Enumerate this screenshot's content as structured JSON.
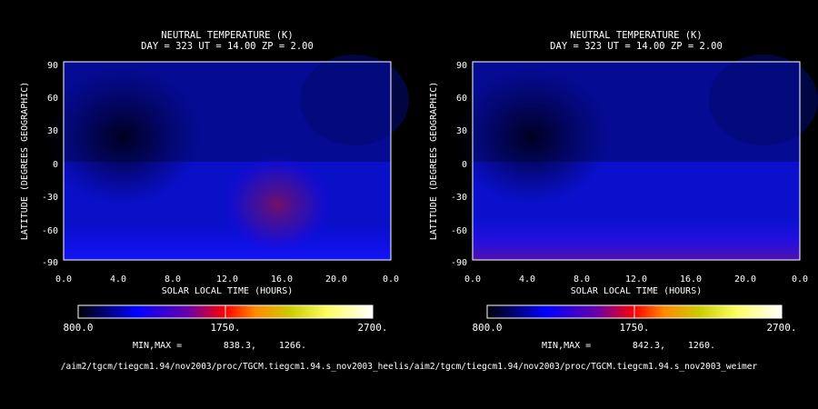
{
  "chart_data": [
    {
      "type": "heatmap",
      "title": "NEUTRAL TEMPERATURE (K)",
      "subtitle": "DAY = 323   UT = 14.00   ZP =    2.00",
      "xlabel": "SOLAR LOCAL TIME (HOURS)",
      "ylabel": "LATITUDE (DEGREES GEOGRAPHIC)",
      "x_ticks": [
        "0.0",
        "4.0",
        "8.0",
        "12.0",
        "16.0",
        "20.0",
        "0.0"
      ],
      "y_ticks": [
        "90",
        "60",
        "30",
        "0",
        "-30",
        "-60",
        "-90"
      ],
      "colorbar": {
        "min_label": "800.0",
        "mid_label": "1750.",
        "max_label": "2700.",
        "min": 800,
        "max": 2700
      },
      "minmax_label": "MIN,MAX =",
      "min_value": "838.3,",
      "max_value": "1266.",
      "path_text": "/aim2/tgcm/tiegcm1.94/nov2003/proc/TGCM.tiegcm1.94.s_nov2003_heelis",
      "features": [
        {
          "x_hours": 15.5,
          "lat": -40,
          "value": 1266
        },
        {
          "x_hours": 4.5,
          "lat": 20,
          "value": 838
        }
      ]
    },
    {
      "type": "heatmap",
      "title": "NEUTRAL TEMPERATURE (K)",
      "subtitle": "DAY = 323   UT = 14.00   ZP =    2.00",
      "xlabel": "SOLAR LOCAL TIME (HOURS)",
      "ylabel": "LATITUDE (DEGREES GEOGRAPHIC)",
      "x_ticks": [
        "0.0",
        "4.0",
        "8.0",
        "12.0",
        "16.0",
        "20.0",
        "0.0"
      ],
      "y_ticks": [
        "90",
        "60",
        "30",
        "0",
        "-30",
        "-60",
        "-90"
      ],
      "colorbar": {
        "min_label": "800.0",
        "mid_label": "1750.",
        "max_label": "2700.",
        "min": 800,
        "max": 2700
      },
      "minmax_label": "MIN,MAX =",
      "min_value": "842.3,",
      "max_value": "1260.",
      "path_text": "/aim2/tgcm/tiegcm1.94/nov2003/proc/TGCM.tiegcm1.94.s_nov2003_weimer",
      "features": [
        {
          "x_hours": 16.0,
          "lat": -80,
          "value": 1260
        },
        {
          "x_hours": 4.5,
          "lat": 20,
          "value": 842
        }
      ]
    }
  ]
}
